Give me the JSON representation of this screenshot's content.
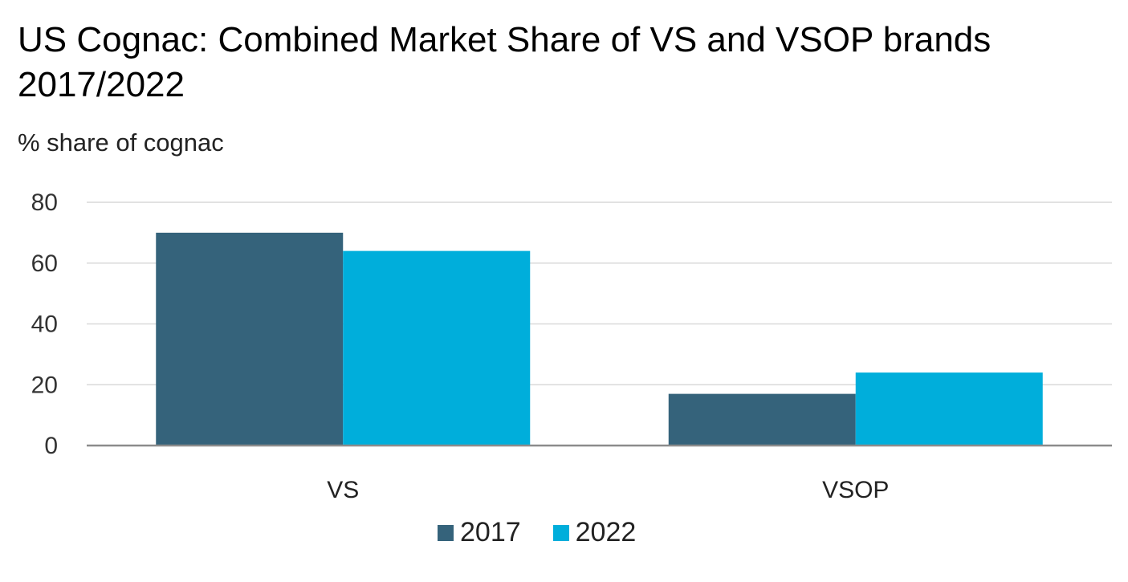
{
  "chart_data": {
    "type": "bar",
    "title": "US Cognac: Combined Market Share of VS and VSOP brands 2017/2022",
    "subtitle": "% share of cognac",
    "xlabel": "",
    "ylabel": "",
    "categories": [
      "VS",
      "VSOP"
    ],
    "series": [
      {
        "name": "2017",
        "values": [
          70,
          17
        ],
        "color": "#35637b"
      },
      {
        "name": "2022",
        "values": [
          64,
          24
        ],
        "color": "#00aedb"
      }
    ],
    "ylim": [
      0,
      80
    ],
    "yticks": [
      "0",
      "20",
      "40",
      "60",
      "80"
    ],
    "grid": true,
    "legend_position": "bottom"
  }
}
